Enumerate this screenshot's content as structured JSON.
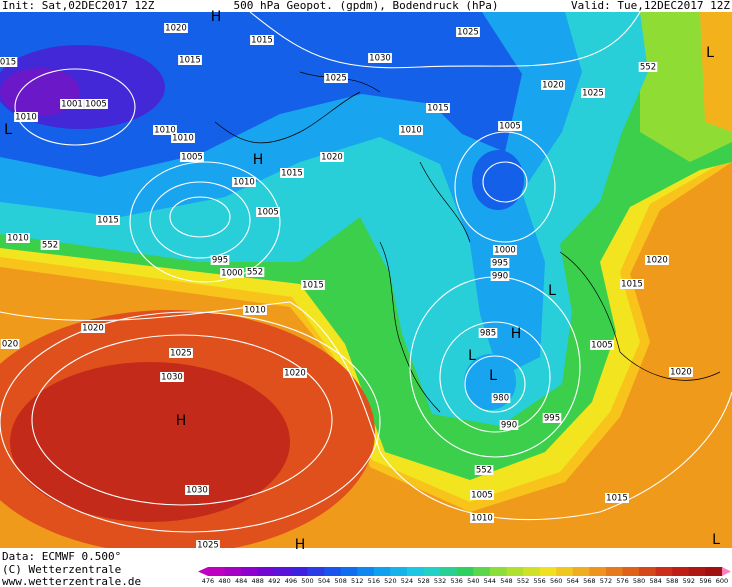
{
  "header": {
    "init": "Init: Sat,02DEC2017 12Z",
    "title": "500 hPa Geopot. (gpdm), Bodendruck (hPa)",
    "valid": "Valid: Tue,12DEC2017 12Z"
  },
  "isobar_labels": [
    1020,
    1015,
    1025,
    "015",
    1015,
    1030,
    1025,
    1020,
    1025,
    1001,
    1005,
    1010,
    1015,
    1005,
    1010,
    1010,
    1010,
    1005,
    1020,
    1015,
    1010,
    1005,
    1015,
    1010,
    552,
    1000,
    995,
    995,
    990,
    1000,
    552,
    1020,
    1015,
    1015,
    1010,
    1020,
    "020",
    985,
    1005,
    1025,
    1030,
    1020,
    1020,
    980,
    995,
    990,
    1030,
    552,
    1005,
    1015,
    1010,
    1025,
    552
  ],
  "centers": [
    "H",
    "H",
    "L",
    "L",
    "L",
    "H",
    "L",
    "L",
    "H",
    "H",
    "L"
  ],
  "footer": {
    "data": "Data: ECMWF  0.500°",
    "copyright": "(C) Wetterzentrale",
    "url": "www.wetterzentrale.de"
  },
  "colorbar": {
    "labels": [
      476,
      480,
      484,
      488,
      492,
      496,
      500,
      504,
      508,
      512,
      516,
      520,
      524,
      528,
      532,
      536,
      540,
      544,
      548,
      552,
      556,
      560,
      564,
      568,
      572,
      576,
      580,
      584,
      588,
      592,
      596,
      600
    ],
    "colors": [
      "#c000c0",
      "#8000d0",
      "#4020e0",
      "#1060f0",
      "#10a0f0",
      "#20d0e0",
      "#30d060",
      "#a0e030",
      "#f0e020",
      "#f0a020",
      "#e06018",
      "#c82018",
      "#a01010",
      "#ff80c0"
    ]
  }
}
